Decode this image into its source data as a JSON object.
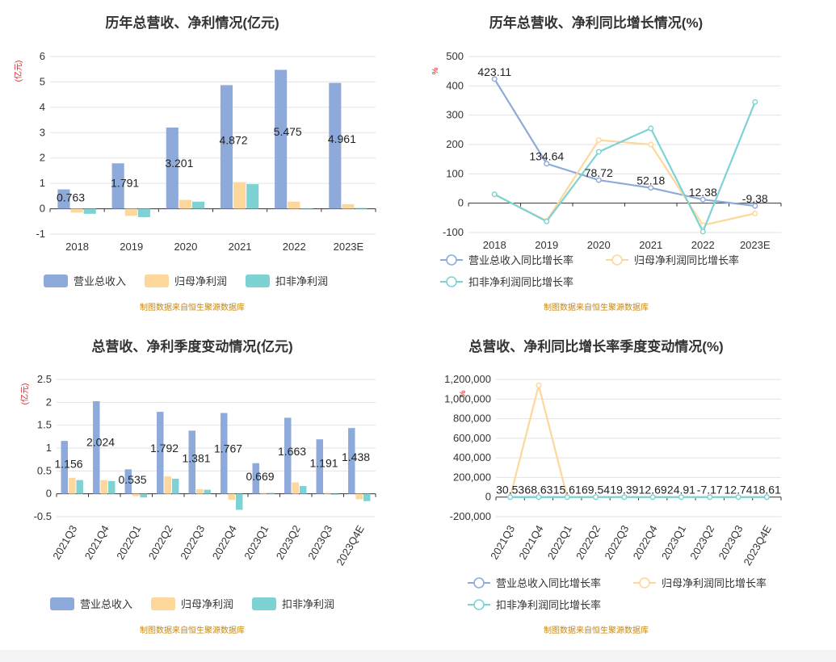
{
  "charts": [
    {
      "type": "bar",
      "title": "历年总营收、净利情况(亿元)",
      "ylabel": "(亿元)",
      "ylim": [
        -1,
        6
      ],
      "yticks": [
        -1,
        0,
        1,
        2,
        3,
        4,
        5,
        6
      ],
      "categories": [
        "2018",
        "2019",
        "2020",
        "2021",
        "2022",
        "2023E"
      ],
      "series": [
        {
          "name": "营业总收入",
          "color": "#8eaadb",
          "values": [
            0.763,
            1.791,
            3.201,
            4.872,
            5.475,
            4.961
          ]
        },
        {
          "name": "归母净利润",
          "color": "#fdd79b",
          "values": [
            -0.15,
            -0.28,
            0.35,
            1.05,
            0.28,
            0.18
          ]
        },
        {
          "name": "扣非净利润",
          "color": "#7dd3d4",
          "values": [
            -0.2,
            -0.33,
            0.28,
            0.97,
            0.0,
            0.03
          ]
        }
      ],
      "data_labels": [
        "0.763",
        "1.791",
        "3.201",
        "4.872",
        "5.475",
        "4.961"
      ],
      "source": "制图数据来自恒生聚源数据库"
    },
    {
      "type": "line",
      "title": "历年总营收、净利同比增长情况(%)",
      "ylabel": "%",
      "ylim": [
        -100,
        500
      ],
      "yticks": [
        -100,
        0,
        100,
        200,
        300,
        400,
        500
      ],
      "categories": [
        "2018",
        "2019",
        "2020",
        "2021",
        "2022",
        "2023E"
      ],
      "series": [
        {
          "name": "营业总收入同比增长率",
          "color": "#8eaadb",
          "values": [
            423.11,
            134.64,
            78.72,
            52.18,
            12.38,
            -9.38
          ]
        },
        {
          "name": "归母净利润同比增长率",
          "color": "#fdd79b",
          "values": [
            30,
            -60,
            215,
            200,
            -75,
            -35
          ]
        },
        {
          "name": "扣非净利润同比增长率",
          "color": "#7dd3d4",
          "values": [
            30,
            -62,
            175,
            255,
            -97,
            345
          ]
        }
      ],
      "data_labels": [
        "423.11",
        "134.64",
        "78.72",
        "52.18",
        "12.38",
        "-9.38"
      ],
      "source": "制图数据来自恒生聚源数据库"
    },
    {
      "type": "bar",
      "title": "总营收、净利季度变动情况(亿元)",
      "ylabel": "(亿元)",
      "ylim": [
        -0.5,
        2.5
      ],
      "yticks": [
        -0.5,
        0,
        0.5,
        1,
        1.5,
        2,
        2.5
      ],
      "categories": [
        "2021Q3",
        "2021Q4",
        "2022Q1",
        "2022Q2",
        "2022Q3",
        "2022Q4",
        "2023Q1",
        "2023Q2",
        "2023Q3",
        "2023Q4E"
      ],
      "series": [
        {
          "name": "营业总收入",
          "color": "#8eaadb",
          "values": [
            1.156,
            2.024,
            0.535,
            1.792,
            1.381,
            1.767,
            0.669,
            1.663,
            1.191,
            1.438
          ]
        },
        {
          "name": "归母净利润",
          "color": "#fdd79b",
          "values": [
            0.35,
            0.3,
            -0.05,
            0.38,
            0.1,
            -0.13,
            0.02,
            0.25,
            0.02,
            -0.12
          ]
        },
        {
          "name": "扣非净利润",
          "color": "#7dd3d4",
          "values": [
            0.3,
            0.28,
            -0.08,
            0.33,
            0.09,
            -0.35,
            0.02,
            0.17,
            -0.02,
            -0.16
          ]
        }
      ],
      "data_labels": [
        "1.156",
        "2.024",
        "0.535",
        "1.792",
        "1.381",
        "1.767",
        "0.669",
        "1.663",
        "1.191",
        "1.438"
      ],
      "source": "制图数据来自恒生聚源数据库"
    },
    {
      "type": "line",
      "title": "总营收、净利同比增长率季度变动情况(%)",
      "ylabel": "%",
      "ylim": [
        -200000,
        1200000
      ],
      "yticks": [
        -200000,
        0,
        200000,
        400000,
        600000,
        800000,
        1000000,
        1200000
      ],
      "ytick_labels": [
        "-200,000",
        "0",
        "200,000",
        "400,000",
        "600,000",
        "800,000",
        "1,000,000",
        "1,200,000"
      ],
      "categories": [
        "2021Q3",
        "2021Q4",
        "2022Q1",
        "2022Q2",
        "2022Q3",
        "2022Q4",
        "2023Q1",
        "2023Q2",
        "2023Q3",
        "2023Q4E"
      ],
      "series": [
        {
          "name": "营业总收入同比增长率",
          "color": "#8eaadb",
          "values": [
            30.53,
            68.63,
            15.6,
            69.54,
            19.39,
            12.69,
            24.91,
            -7.17,
            12.74,
            18.61
          ]
        },
        {
          "name": "归母净利润同比增长率",
          "color": "#fdd79b",
          "values": [
            0,
            1140000,
            0,
            0,
            0,
            0,
            0,
            0,
            0,
            0
          ]
        },
        {
          "name": "扣非净利润同比增长率",
          "color": "#7dd3d4",
          "values": [
            0,
            0,
            0,
            0,
            0,
            0,
            0,
            0,
            0,
            0
          ]
        }
      ],
      "data_labels": [
        "30.53",
        "68.63",
        "15.61",
        "69.54",
        "19.39",
        "12.69",
        "24.91",
        "-7.17",
        "12.74",
        "18.61"
      ],
      "source": "制图数据来自恒生聚源数据库"
    }
  ]
}
